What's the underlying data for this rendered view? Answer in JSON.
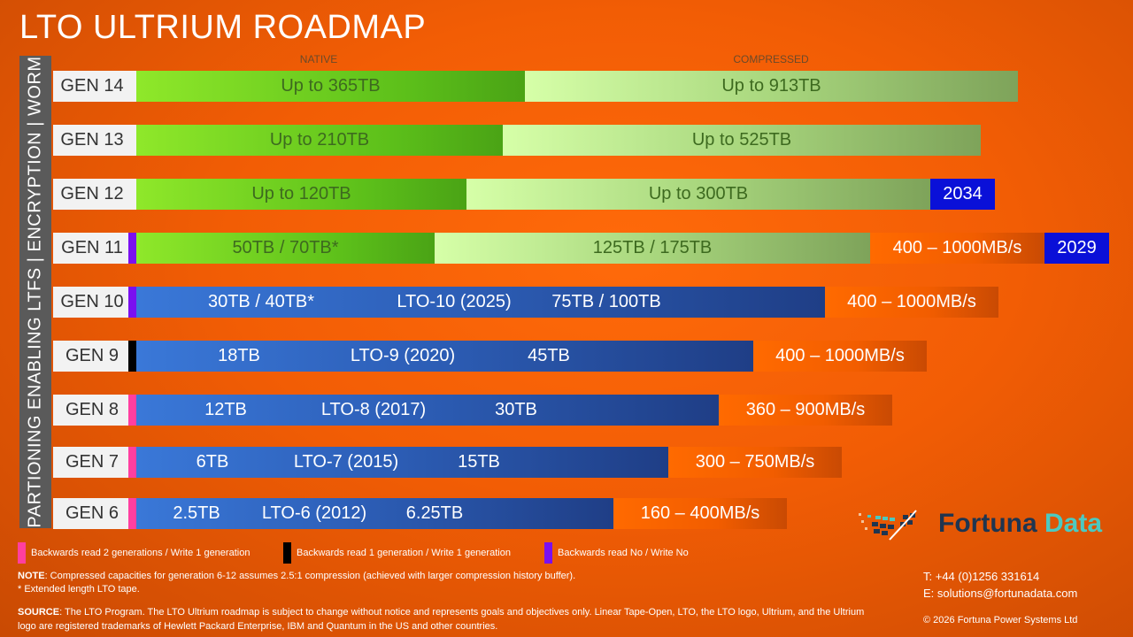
{
  "title": "LTO ULTRIUM ROADMAP",
  "side_label": "PARTIONING ENABLING LTFS | ENCRYPTION | WORM",
  "headers": {
    "native": "NATIVE",
    "compressed": "COMPRESSED"
  },
  "rows": [
    {
      "gen": "GEN 14",
      "native": "Up to 365TB",
      "compressed": "Up to 913TB"
    },
    {
      "gen": "GEN 13",
      "native": "Up to 210TB",
      "compressed": "Up to 525TB"
    },
    {
      "gen": "GEN 12",
      "native": "Up to 120TB",
      "compressed": "Up to 300TB",
      "year": "2034"
    },
    {
      "gen": "GEN 11",
      "native": "50TB / 70TB*",
      "compressed": "125TB / 175TB",
      "speed": "400 – 1000MB/s",
      "year": "2029"
    },
    {
      "gen": "GEN 10",
      "native": "30TB / 40TB*",
      "release": "LTO-10 (2025)",
      "compressed": "75TB / 100TB",
      "speed": "400 – 1000MB/s"
    },
    {
      "gen": "GEN 9",
      "native": "18TB",
      "release": "LTO-9 (2020)",
      "compressed": "45TB",
      "speed": "400 – 1000MB/s"
    },
    {
      "gen": "GEN 8",
      "native": "12TB",
      "release": "LTO-8 (2017)",
      "compressed": "30TB",
      "speed": "360 – 900MB/s"
    },
    {
      "gen": "GEN 7",
      "native": "6TB",
      "release": "LTO-7 (2015)",
      "compressed": "15TB",
      "speed": "300 – 750MB/s"
    },
    {
      "gen": "GEN 6",
      "native": "2.5TB",
      "release": "LTO-6 (2012)",
      "compressed": "6.25TB",
      "speed": "160 – 400MB/s"
    }
  ],
  "legend": [
    {
      "label": "Backwards read 2 generations / Write 1 generation",
      "color": "#ff3fa0"
    },
    {
      "label": "Backwards read 1 generation / Write 1 generation",
      "color": "#000000"
    },
    {
      "label": "Backwards read No / Write No",
      "color": "#7a10f0"
    }
  ],
  "note_label": "NOTE",
  "note": ": Compressed capacities for generation 6-12 assumes 2.5:1 compression (achieved with larger compression history buffer).",
  "footnote": "* Extended length LTO tape.",
  "source_label": "SOURCE",
  "source": ": The LTO Program.  The LTO Ultrium roadmap is subject to change without notice and represents goals and objectives only.  Linear Tape-Open, LTO, the LTO logo, Ultrium, and the Ultrium logo are registered trademarks of Hewlett Packard Enterprise, IBM and Quantum in the US and other countries.",
  "logo": {
    "word1": "Fortuna",
    "word2": "Data"
  },
  "contact": {
    "phone": "T: +44 (0)1256 331614",
    "email": "E: solutions@fortunadata.com",
    "copyright": "© 2026 Fortuna Power Systems Ltd"
  }
}
